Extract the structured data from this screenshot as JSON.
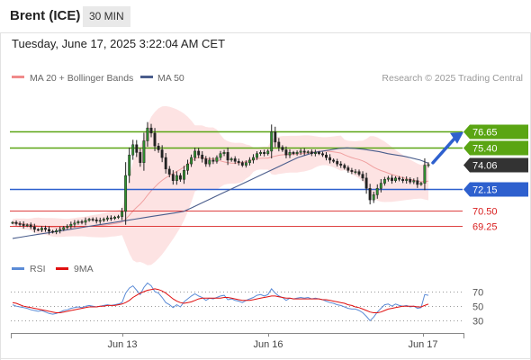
{
  "header": {
    "title": "Brent (ICE)",
    "timeframe": "30 MIN"
  },
  "timestamp": "Tuesday, June 17, 2025 3:22:04 AM CET",
  "legend": {
    "bollinger": "MA 20 + Bollinger Bands",
    "ma50": "MA 50"
  },
  "credit": "Research © 2025 Trading Central",
  "colors": {
    "green": "#5aa513",
    "blue": "#2e60ce",
    "red": "#d92020",
    "dark": "#333333",
    "bollinger_fill": "#fde0e0",
    "ma50": "#4a5d8c",
    "rsi": "#5b8bd6",
    "rsi_ma": "#e01010"
  },
  "chart_data": [
    {
      "type": "candlestick",
      "x_labels": [
        "Jun 13",
        "Jun 16",
        "Jun 17"
      ],
      "y_range": [
        67.1,
        80.0
      ],
      "levels": [
        {
          "value": 76.65,
          "label": "76.65",
          "kind": "resistance"
        },
        {
          "value": 75.4,
          "label": "75.40",
          "kind": "resistance"
        },
        {
          "value": 74.06,
          "label": "74.06",
          "kind": "last"
        },
        {
          "value": 72.15,
          "label": "72.15",
          "kind": "pivot"
        },
        {
          "value": 70.5,
          "label": "70.50",
          "kind": "support"
        },
        {
          "value": 69.25,
          "label": "69.25",
          "kind": "support"
        }
      ],
      "close": [
        69.55,
        69.45,
        69.4,
        69.3,
        69.35,
        69.2,
        69.0,
        68.95,
        69.1,
        69.0,
        68.85,
        68.8,
        68.9,
        69.0,
        69.15,
        69.25,
        69.4,
        69.5,
        69.6,
        69.55,
        69.7,
        69.8,
        69.75,
        69.65,
        69.7,
        69.8,
        69.9,
        69.85,
        69.95,
        70.0,
        70.4,
        73.2,
        74.8,
        75.6,
        75.0,
        74.2,
        75.9,
        76.9,
        76.5,
        75.5,
        75.2,
        74.6,
        73.7,
        73.3,
        72.8,
        73.2,
        72.9,
        73.6,
        74.1,
        74.6,
        75.1,
        74.8,
        74.5,
        74.1,
        74.4,
        74.3,
        74.6,
        74.9,
        75.0,
        74.4,
        74.5,
        74.3,
        74.2,
        74.0,
        74.2,
        74.4,
        74.6,
        74.9,
        75.0,
        74.9,
        75.1,
        76.6,
        75.8,
        75.4,
        75.2,
        74.8,
        75.0,
        74.9,
        75.0,
        75.1,
        75.0,
        75.05,
        74.9,
        75.0,
        74.9,
        74.8,
        74.6,
        74.4,
        74.3,
        74.1,
        74.0,
        73.8,
        73.6,
        73.5,
        73.5,
        73.3,
        73.0,
        72.2,
        71.3,
        71.7,
        72.2,
        72.6,
        72.9,
        73.0,
        72.8,
        73.0,
        72.9,
        72.8,
        72.9,
        72.7,
        72.8,
        72.5,
        72.6,
        74.0,
        74.05
      ],
      "ma50": [
        68.3,
        68.4,
        68.5,
        68.6,
        68.7,
        68.8,
        68.9,
        69.0,
        69.1,
        69.2,
        69.3,
        69.4,
        69.5,
        69.6,
        69.7,
        69.8,
        69.9,
        70.0,
        70.1,
        70.2,
        70.3,
        70.4,
        70.7,
        71.0,
        71.3,
        71.6,
        71.9,
        72.2,
        72.5,
        72.8,
        73.1,
        73.4,
        73.7,
        74.0,
        74.3,
        74.6,
        74.8,
        75.0,
        75.1,
        75.2,
        75.3,
        75.35,
        75.3,
        75.25,
        75.15,
        75.05,
        74.9,
        74.8,
        74.7,
        74.55,
        74.4,
        74.15
      ],
      "rsi_range": [
        18,
        85
      ],
      "rsi_levels": [
        70,
        50,
        30
      ],
      "rsi": [
        52,
        50,
        49,
        48,
        47,
        45,
        44,
        43,
        44,
        42,
        40,
        39,
        40,
        42,
        44,
        45,
        47,
        48,
        49,
        48,
        50,
        51,
        50,
        49,
        50,
        51,
        52,
        51,
        52,
        53,
        55,
        68,
        75,
        78,
        72,
        66,
        76,
        82,
        78,
        70,
        68,
        62,
        55,
        52,
        48,
        52,
        49,
        56,
        60,
        64,
        67,
        64,
        62,
        58,
        61,
        60,
        62,
        64,
        65,
        59,
        60,
        58,
        57,
        55,
        58,
        60,
        62,
        65,
        66,
        64,
        66,
        74,
        68,
        64,
        62,
        58,
        61,
        60,
        61,
        62,
        61,
        62,
        60,
        61,
        60,
        59,
        57,
        55,
        54,
        52,
        51,
        49,
        47,
        46,
        46,
        44,
        41,
        36,
        30,
        35,
        42,
        47,
        52,
        53,
        50,
        53,
        51,
        50,
        51,
        49,
        50,
        47,
        48,
        66,
        65
      ],
      "rsi_ma": [
        55,
        54,
        52,
        50,
        49,
        48,
        47,
        46,
        45,
        44,
        43,
        42,
        41,
        41,
        42,
        43,
        44,
        45,
        46,
        47,
        48,
        49,
        49,
        49,
        50,
        50,
        51,
        51,
        51,
        52,
        53,
        55,
        58,
        62,
        65,
        68,
        70,
        72,
        73,
        74,
        73,
        71,
        68,
        64,
        60,
        57,
        55,
        54,
        55,
        56,
        58,
        60,
        61,
        61,
        61,
        61,
        61,
        61,
        62,
        62,
        61,
        60,
        59,
        58,
        58,
        58,
        59,
        60,
        61,
        62,
        63,
        64,
        64,
        63,
        62,
        61,
        61,
        60,
        60,
        60,
        60,
        60,
        60,
        60,
        60,
        59,
        59,
        58,
        57,
        56,
        55,
        54,
        52,
        51,
        49,
        48,
        46,
        44,
        42,
        41,
        41,
        42,
        44,
        46,
        47,
        48,
        49,
        50,
        50,
        50,
        50,
        49,
        49,
        51,
        53
      ]
    }
  ]
}
